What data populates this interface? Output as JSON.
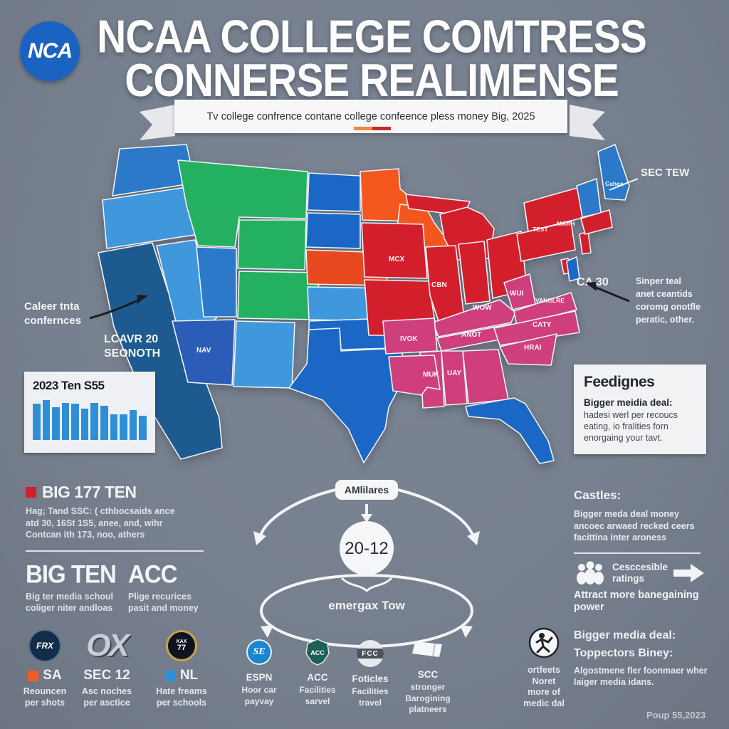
{
  "header": {
    "logo_text": "NCA",
    "title_line1": "NCAA COLLEGE COMTRESS",
    "title_line2": "CONNERSE REALIMENSE",
    "banner_text": "Tv college confrence contane college confeence pless money Big, 2025",
    "dash_orange": "#f0883c",
    "dash_red": "#c92a2a"
  },
  "map": {
    "callout_left_lines": [
      "Caleer tnta",
      "confernces"
    ],
    "overlay_lines": [
      "LCAVR 20",
      "SEONOTH"
    ],
    "sec_callout": "SEC TEW",
    "ca_label": "CA 30",
    "note_right_lines": [
      "Sinper teal",
      "anet ceantids",
      "coromg onotfle",
      "peratic, other."
    ],
    "state_labels": {
      "maine": "Cahea",
      "ny_west": "TEST",
      "ny_east": "MARH",
      "iowa": "MCX",
      "illinois": "CBN",
      "kentucky": "WOW",
      "west_virginia": "WUI",
      "virginia": "VANGLRE",
      "tennessee": "ANOT",
      "north_carolina": "CATY",
      "south_carolina": "HRAI",
      "arkansas": "IVOK",
      "mississippi": "MUK",
      "alabama": "UAY",
      "arizona": "NAV"
    },
    "colors": {
      "red": "#d31f2b",
      "pink": "#ce3f7c",
      "orange": "#f4571e",
      "orange_red": "#e8491f",
      "green": "#23b161",
      "light_blue": "#3f97dc",
      "medium_blue": "#2b79c8",
      "royal_blue": "#1a67c5",
      "navy": "#1d5a90",
      "dark_royal": "#2b5cb8"
    }
  },
  "chart_data": {
    "type": "bar",
    "title": "2023 Ten S55",
    "categories": [
      "",
      "",
      "",
      "",
      "",
      "",
      "",
      "",
      "",
      "",
      "",
      ""
    ],
    "values": [
      88,
      97,
      80,
      90,
      88,
      76,
      90,
      82,
      62,
      62,
      72,
      58
    ],
    "ylim": [
      0,
      100
    ],
    "xlabel": "",
    "ylabel": "",
    "bar_color": "#2f8fd6",
    "grid": false,
    "legend": false
  },
  "sections": {
    "big17": {
      "heading": "BIG 177 TEN",
      "bullet_color": "#d31f2b",
      "lines": [
        "Hag; Tand SSC: ( cthbocsaids ance",
        "atd 30, 16St 1S5, anee, and, wihr",
        "Contcan ith 173, noo, athers"
      ]
    },
    "big_ten": {
      "heading": "BIG TEN",
      "lines": [
        "Big ter media schoul",
        "coliger niter andloas"
      ]
    },
    "acc": {
      "heading": "ACC",
      "lines": [
        "Plige recurices",
        "pasit and money"
      ]
    },
    "feedings": {
      "title": "Feedignes",
      "bold_line": "Bigger meidia deal:",
      "body": "hadesi werl per recoucs eating, io fralities forn enorgaing your tavt."
    },
    "castles": {
      "title": "Castles:",
      "body": "Bigger meda deal money ancoec arwaed recked ceers facittina inter aroness",
      "rating_lines": [
        "Cesccesible",
        "ratings"
      ],
      "bottom": "Attract more banegaining power"
    }
  },
  "flow": {
    "top_box": "AMlilares",
    "circle": "20-12",
    "oval_label": "emergax Tow"
  },
  "footer": {
    "cols": [
      {
        "logo_text": "FRX",
        "heading": "SA",
        "bullet_color": "#f05a28",
        "lines": [
          "Reouncen",
          "per shots"
        ]
      },
      {
        "logo_text": "OX",
        "heading": "SEC 12",
        "lines": [
          "Asc noches",
          "per asctice"
        ]
      },
      {
        "logo_text_top": "KAX",
        "logo_text": "77",
        "heading": "NL",
        "bullet_color": "#2a8fdd",
        "lines": [
          "Hate freams",
          "per schools"
        ]
      },
      {
        "logo_text": "SE",
        "heading": "ESPN",
        "lines": [
          "Hoor car",
          "payvay"
        ]
      },
      {
        "logo_text": "ACC",
        "heading": "ACC",
        "lines": [
          "Facilities",
          "sarvel"
        ]
      },
      {
        "logo_text": "FCC",
        "heading": "Foticles",
        "lines": [
          "Facilities",
          "travel"
        ]
      },
      {
        "heading": "SCC",
        "lines": [
          "stronger",
          "Barogining",
          "platneers"
        ]
      }
    ],
    "right": {
      "caption_lines": [
        "ortfeets",
        "Noret",
        "more of",
        "medic dal"
      ],
      "bold1": "Bigger media deal:",
      "bold2": "Toppectors Biney:",
      "body": "Algostmene fler foonmaer wher laiger media idans.",
      "corner": "Poup 55,2023"
    }
  }
}
